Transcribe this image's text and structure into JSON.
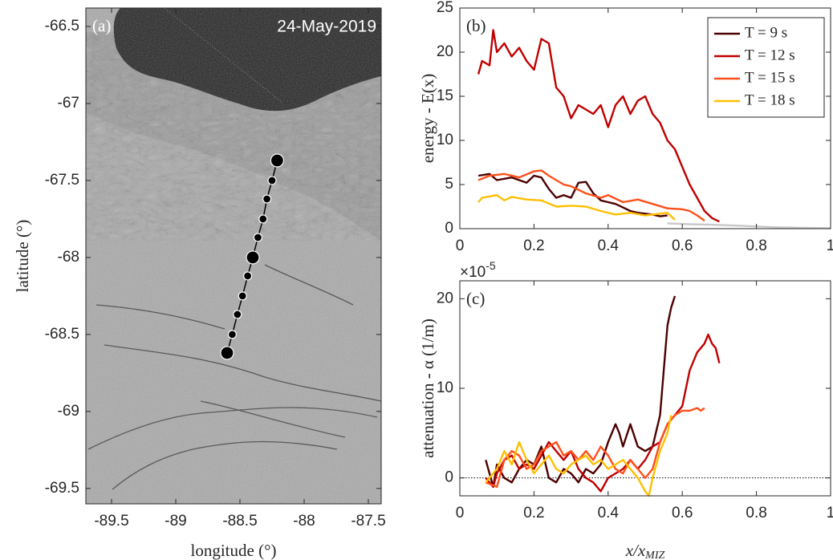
{
  "chart_data": [
    {
      "type": "scatter",
      "panel_label": "(a)",
      "annotation": "24-May-2019",
      "xlabel": "longitude (°)",
      "ylabel": "latitude (°)",
      "xlim": [
        -89.7,
        -87.4
      ],
      "xticks": [
        -89.5,
        -89,
        -88.5,
        -88,
        -87.5
      ],
      "ylim": [
        -69.6,
        -66.38
      ],
      "yticks": [
        -69.5,
        -69,
        -68.5,
        -68,
        -67.5,
        -67,
        -66.5
      ],
      "series": [
        {
          "color": "#000000",
          "connected": true,
          "x": [
            -88.6,
            -88.56,
            -88.52,
            -88.48,
            -88.44,
            -88.4,
            -88.36,
            -88.32,
            -88.29,
            -88.25,
            -88.21
          ],
          "values": [
            -68.62,
            -68.5,
            -68.37,
            -68.25,
            -68.12,
            -68.0,
            -67.87,
            -67.75,
            -67.62,
            -67.5,
            -67.37
          ],
          "large_marker": [
            true,
            false,
            false,
            false,
            false,
            true,
            false,
            false,
            false,
            false,
            true
          ]
        }
      ]
    },
    {
      "type": "line",
      "panel_label": "(b)",
      "ylabel": "energy - E(x)",
      "xlim": [
        0,
        1
      ],
      "xticks": [
        0,
        0.2,
        0.4,
        0.6,
        0.8,
        1
      ],
      "ylim": [
        0,
        25
      ],
      "yticks": [
        0,
        5,
        10,
        15,
        20,
        25
      ],
      "legend": "upper right",
      "series": [
        {
          "color": "#c8c8c8",
          "x": [
            0.56,
            0.62,
            0.68,
            0.74,
            0.8,
            0.86,
            0.92,
            1.0
          ],
          "values": [
            0.6,
            0.5,
            0.45,
            0.35,
            0.25,
            0.15,
            0.1,
            0.05
          ]
        },
        {
          "name": "T = 9 s",
          "color": "#4d0000",
          "x": [
            0.05,
            0.08,
            0.1,
            0.14,
            0.18,
            0.2,
            0.22,
            0.24,
            0.26,
            0.28,
            0.3,
            0.32,
            0.34,
            0.36,
            0.38,
            0.4,
            0.42,
            0.44,
            0.46,
            0.48,
            0.5,
            0.52,
            0.54,
            0.56
          ],
          "values": [
            6,
            6.2,
            5.5,
            5.8,
            5.2,
            6,
            5.8,
            4.5,
            3.5,
            3.8,
            3.5,
            5.2,
            5.3,
            4,
            3.2,
            3,
            2.8,
            2.4,
            2,
            1.8,
            1.7,
            1.6,
            1.4,
            1.5
          ]
        },
        {
          "name": "T = 12 s",
          "color": "#c00000",
          "x": [
            0.05,
            0.06,
            0.08,
            0.09,
            0.1,
            0.12,
            0.14,
            0.16,
            0.18,
            0.2,
            0.22,
            0.24,
            0.26,
            0.28,
            0.3,
            0.32,
            0.34,
            0.36,
            0.38,
            0.4,
            0.42,
            0.44,
            0.46,
            0.48,
            0.5,
            0.52,
            0.54,
            0.56,
            0.58,
            0.6,
            0.62,
            0.64,
            0.66,
            0.68,
            0.7
          ],
          "values": [
            17.5,
            19,
            18.5,
            22.5,
            20,
            21,
            19.5,
            20.5,
            19,
            18,
            21.5,
            21,
            16,
            15,
            12.5,
            14,
            13.5,
            13,
            14,
            11.5,
            14,
            15,
            13,
            14.5,
            15,
            13,
            12,
            10,
            9,
            7,
            5,
            3.5,
            2,
            1.2,
            0.8
          ]
        },
        {
          "name": "T = 15 s",
          "color": "#ff4f1a",
          "x": [
            0.05,
            0.08,
            0.12,
            0.16,
            0.2,
            0.22,
            0.24,
            0.26,
            0.28,
            0.3,
            0.34,
            0.38,
            0.4,
            0.44,
            0.48,
            0.52,
            0.56,
            0.6,
            0.62,
            0.64,
            0.66
          ],
          "values": [
            5.5,
            6,
            6.2,
            5.8,
            6.5,
            6.6,
            6,
            5.5,
            5,
            4.8,
            4,
            3.5,
            3.8,
            3,
            3.3,
            2.8,
            2.3,
            2.2,
            2,
            1.5,
            0.9
          ]
        },
        {
          "name": "T = 18 s",
          "color": "#ffbf00",
          "x": [
            0.05,
            0.06,
            0.1,
            0.12,
            0.14,
            0.18,
            0.22,
            0.26,
            0.3,
            0.34,
            0.38,
            0.42,
            0.46,
            0.5,
            0.54,
            0.56,
            0.58
          ],
          "values": [
            3,
            3.5,
            3.8,
            3.2,
            3.6,
            3.3,
            3.2,
            2.5,
            2.6,
            2.5,
            2,
            1.6,
            1.8,
            1.5,
            1.7,
            1.8,
            1.0
          ]
        }
      ]
    },
    {
      "type": "line",
      "panel_label": "(c)",
      "ylabel": "attenuation - α (1/m)",
      "xlabel": "x/x",
      "xlabel_subscript": "MIZ",
      "exponent_base": "×10",
      "exponent_power": "-5",
      "xlim": [
        0,
        1
      ],
      "xticks": [
        0,
        0.2,
        0.4,
        0.6,
        0.8,
        1
      ],
      "ylim": [
        -2,
        22
      ],
      "yticks": [
        0,
        10,
        20
      ],
      "hline": 0,
      "series": [
        {
          "color": "#4d0000",
          "x": [
            0.07,
            0.09,
            0.1,
            0.12,
            0.14,
            0.16,
            0.18,
            0.2,
            0.22,
            0.24,
            0.26,
            0.28,
            0.3,
            0.32,
            0.34,
            0.36,
            0.38,
            0.4,
            0.42,
            0.43,
            0.44,
            0.46,
            0.48,
            0.5,
            0.52,
            0.54,
            0.55,
            0.56,
            0.57,
            0.58
          ],
          "values": [
            2,
            -1,
            1.5,
            0,
            -0.5,
            1,
            2,
            1.5,
            3.5,
            0,
            -0.5,
            1,
            0.5,
            -0.5,
            1,
            0.5,
            1.5,
            4,
            6,
            5,
            3.5,
            6,
            3.5,
            3,
            3.5,
            7,
            12,
            17,
            19,
            20.3
          ]
        },
        {
          "color": "#c00000",
          "x": [
            0.07,
            0.09,
            0.1,
            0.12,
            0.14,
            0.16,
            0.18,
            0.2,
            0.22,
            0.24,
            0.26,
            0.28,
            0.3,
            0.32,
            0.34,
            0.36,
            0.38,
            0.4,
            0.42,
            0.44,
            0.46,
            0.48,
            0.5,
            0.52,
            0.54,
            0.56,
            0.58,
            0.6,
            0.62,
            0.64,
            0.66,
            0.67,
            0.68,
            0.69,
            0.7
          ],
          "values": [
            0,
            -1,
            0.5,
            2,
            2.5,
            1,
            1.5,
            1,
            2.5,
            4,
            3,
            2,
            3,
            1,
            0,
            -0.5,
            -1.5,
            0,
            0.5,
            1,
            2,
            1,
            2,
            3.5,
            4,
            6,
            7,
            8,
            12,
            14,
            15,
            16,
            15,
            14.5,
            12.8
          ]
        },
        {
          "color": "#ff4f1a",
          "x": [
            0.07,
            0.1,
            0.12,
            0.14,
            0.16,
            0.18,
            0.2,
            0.22,
            0.24,
            0.26,
            0.28,
            0.3,
            0.32,
            0.34,
            0.36,
            0.38,
            0.4,
            0.42,
            0.44,
            0.46,
            0.48,
            0.5,
            0.52,
            0.54,
            0.56,
            0.58,
            0.6,
            0.62,
            0.64,
            0.65,
            0.66
          ],
          "values": [
            -0.5,
            -1,
            2,
            3,
            2.5,
            1,
            1.5,
            3,
            3.5,
            4,
            2.5,
            3,
            2,
            3,
            2,
            3.5,
            2.5,
            1,
            0.5,
            2,
            1,
            0,
            1,
            4,
            6,
            7,
            7.5,
            7.5,
            7.8,
            7.5,
            7.8
          ]
        },
        {
          "color": "#ffbf00",
          "x": [
            0.07,
            0.1,
            0.12,
            0.14,
            0.16,
            0.18,
            0.2,
            0.22,
            0.24,
            0.26,
            0.28,
            0.3,
            0.32,
            0.34,
            0.36,
            0.38,
            0.4,
            0.42,
            0.44,
            0.46,
            0.48,
            0.5,
            0.51,
            0.52,
            0.54,
            0.56,
            0.57
          ],
          "values": [
            -0.5,
            1,
            3,
            1.5,
            4,
            2,
            0.5,
            1.5,
            2.5,
            1,
            0.5,
            1.5,
            2,
            2.5,
            1.5,
            2,
            1,
            1.5,
            2,
            1,
            0,
            -1.5,
            -2,
            0,
            3,
            5,
            7
          ]
        }
      ]
    }
  ]
}
